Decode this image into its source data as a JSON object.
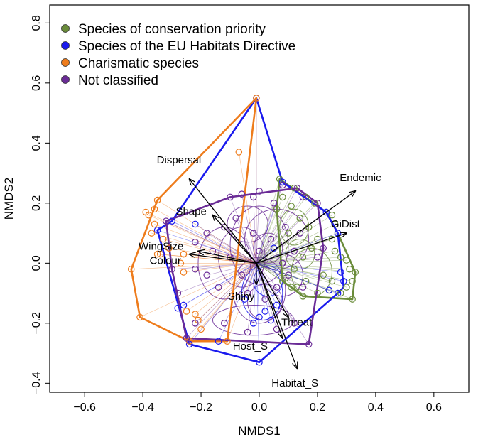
{
  "chart_data": {
    "type": "scatter",
    "xlabel": "NMDS1",
    "ylabel": "NMDS2",
    "xlim": [
      -0.72,
      0.72
    ],
    "ylim": [
      -0.43,
      0.86
    ],
    "xticks": [
      -0.6,
      -0.4,
      -0.2,
      0.0,
      0.2,
      0.4,
      0.6
    ],
    "xtick_labels": [
      "−0.6",
      "−0.4",
      "−0.2",
      "0.0",
      "0.2",
      "0.4",
      "0.6"
    ],
    "yticks": [
      -0.4,
      -0.2,
      0.0,
      0.2,
      0.4,
      0.6,
      0.8
    ],
    "ytick_labels": [
      "−0.4",
      "−0.2",
      "0.0",
      "0.2",
      "0.4",
      "0.6",
      "0.8"
    ],
    "grid": false,
    "legend_position": "top-left",
    "centroid": [
      -0.01,
      0.0
    ],
    "series": [
      {
        "name": "Species of conservation priority",
        "color": "#6a8c3a",
        "hull": [
          [
            0.07,
            0.28
          ],
          [
            0.23,
            0.17
          ],
          [
            0.27,
            0.1
          ],
          [
            0.33,
            -0.03
          ],
          [
            0.32,
            -0.12
          ],
          [
            0.15,
            -0.11
          ],
          [
            0.11,
            -0.08
          ],
          [
            0.08,
            -0.06
          ],
          [
            0.06,
            0.18
          ]
        ],
        "points": [
          [
            0.07,
            0.28
          ],
          [
            0.12,
            0.25
          ],
          [
            0.16,
            0.22
          ],
          [
            0.19,
            0.2
          ],
          [
            0.23,
            0.17
          ],
          [
            0.25,
            0.16
          ],
          [
            0.26,
            0.13
          ],
          [
            0.27,
            0.1
          ],
          [
            0.25,
            0.08
          ],
          [
            0.26,
            0.04
          ],
          [
            0.28,
            0.02
          ],
          [
            0.3,
            0.01
          ],
          [
            0.31,
            -0.02
          ],
          [
            0.33,
            -0.03
          ],
          [
            0.32,
            -0.06
          ],
          [
            0.3,
            -0.08
          ],
          [
            0.32,
            -0.12
          ],
          [
            0.28,
            -0.1
          ],
          [
            0.24,
            -0.09
          ],
          [
            0.2,
            -0.1
          ],
          [
            0.15,
            -0.11
          ],
          [
            0.13,
            -0.08
          ],
          [
            0.11,
            -0.08
          ],
          [
            0.09,
            -0.05
          ],
          [
            0.08,
            -0.06
          ],
          [
            0.12,
            -0.02
          ],
          [
            0.15,
            0.02
          ],
          [
            0.18,
            0.05
          ],
          [
            0.2,
            0.08
          ],
          [
            0.17,
            0.12
          ],
          [
            0.14,
            0.15
          ],
          [
            0.11,
            0.19
          ],
          [
            0.08,
            0.22
          ],
          [
            0.06,
            0.18
          ],
          [
            0.1,
            0.1
          ],
          [
            0.22,
            -0.04
          ],
          [
            0.25,
            -0.06
          ],
          [
            0.16,
            -0.06
          ]
        ]
      },
      {
        "name": "Species of the EU Habitats Directive",
        "color": "#1a1aee",
        "hull": [
          [
            -0.01,
            0.55
          ],
          [
            0.08,
            0.27
          ],
          [
            0.23,
            0.17
          ],
          [
            0.27,
            0.1
          ],
          [
            0.29,
            -0.08
          ],
          [
            0.27,
            -0.1
          ],
          [
            0.0,
            -0.33
          ],
          [
            -0.24,
            -0.27
          ],
          [
            -0.35,
            0.11
          ],
          [
            -0.3,
            0.14
          ]
        ],
        "points": [
          [
            -0.01,
            0.55
          ],
          [
            0.08,
            0.27
          ],
          [
            0.23,
            0.17
          ],
          [
            0.27,
            0.1
          ],
          [
            0.28,
            -0.03
          ],
          [
            0.29,
            -0.06
          ],
          [
            0.27,
            -0.1
          ],
          [
            0.24,
            -0.09
          ],
          [
            0.0,
            -0.33
          ],
          [
            -0.14,
            -0.26
          ],
          [
            -0.24,
            -0.27
          ],
          [
            -0.35,
            0.11
          ],
          [
            -0.3,
            0.14
          ],
          [
            -0.28,
            -0.15
          ],
          [
            -0.26,
            -0.14
          ],
          [
            -0.22,
            0.13
          ],
          [
            0.04,
            -0.19
          ],
          [
            0.0,
            -0.18
          ],
          [
            -0.02,
            -0.2
          ],
          [
            0.02,
            -0.16
          ],
          [
            0.06,
            -0.14
          ],
          [
            -0.05,
            -0.12
          ],
          [
            0.05,
            0.05
          ]
        ]
      },
      {
        "name": "Charismatic species",
        "color": "#ee7c1c",
        "hull": [
          [
            -0.01,
            0.55
          ],
          [
            -0.11,
            -0.26
          ],
          [
            -0.24,
            -0.26
          ],
          [
            -0.41,
            -0.18
          ],
          [
            -0.44,
            -0.02
          ],
          [
            -0.35,
            0.21
          ]
        ],
        "points": [
          [
            -0.01,
            0.55
          ],
          [
            -0.07,
            0.37
          ],
          [
            -0.35,
            0.21
          ],
          [
            -0.36,
            0.18
          ],
          [
            -0.38,
            0.16
          ],
          [
            -0.39,
            0.17
          ],
          [
            -0.36,
            0.13
          ],
          [
            -0.37,
            0.1
          ],
          [
            -0.33,
            0.08
          ],
          [
            -0.31,
            0.05
          ],
          [
            -0.34,
            0.03
          ],
          [
            -0.35,
            0.03
          ],
          [
            -0.26,
            0.03
          ],
          [
            -0.27,
            0.0
          ],
          [
            -0.26,
            -0.03
          ],
          [
            -0.44,
            -0.02
          ],
          [
            -0.41,
            -0.18
          ],
          [
            -0.25,
            -0.16
          ],
          [
            -0.22,
            -0.17
          ],
          [
            -0.21,
            -0.19
          ],
          [
            -0.2,
            -0.22
          ],
          [
            -0.24,
            -0.26
          ],
          [
            -0.11,
            -0.26
          ]
        ]
      },
      {
        "name": "Not classified",
        "color": "#6a2b96",
        "hull": [
          [
            -0.1,
            0.22
          ],
          [
            0.13,
            0.25
          ],
          [
            0.2,
            0.2
          ],
          [
            0.22,
            0.05
          ],
          [
            0.17,
            -0.27
          ],
          [
            -0.25,
            -0.25
          ],
          [
            -0.3,
            -0.02
          ],
          [
            -0.32,
            0.14
          ]
        ],
        "points": [
          [
            -0.1,
            0.22
          ],
          [
            0.0,
            0.24
          ],
          [
            0.08,
            0.26
          ],
          [
            0.13,
            0.25
          ],
          [
            0.2,
            0.2
          ],
          [
            0.15,
            0.22
          ],
          [
            0.05,
            0.2
          ],
          [
            -0.02,
            0.22
          ],
          [
            -0.06,
            0.23
          ],
          [
            0.22,
            0.05
          ],
          [
            0.2,
            0.02
          ],
          [
            0.17,
            -0.27
          ],
          [
            0.12,
            -0.2
          ],
          [
            0.06,
            -0.22
          ],
          [
            -0.04,
            -0.23
          ],
          [
            -0.12,
            -0.2
          ],
          [
            -0.22,
            -0.2
          ],
          [
            -0.25,
            -0.25
          ],
          [
            -0.28,
            -0.1
          ],
          [
            -0.3,
            -0.02
          ],
          [
            -0.32,
            0.14
          ],
          [
            -0.22,
            0.07
          ],
          [
            -0.18,
            0.1
          ],
          [
            -0.12,
            0.12
          ],
          [
            -0.08,
            0.15
          ],
          [
            -0.02,
            0.1
          ],
          [
            0.04,
            0.08
          ],
          [
            0.09,
            0.12
          ],
          [
            0.14,
            0.1
          ],
          [
            0.12,
            0.04
          ],
          [
            0.08,
            0.0
          ],
          [
            -0.06,
            -0.04
          ],
          [
            -0.14,
            -0.08
          ],
          [
            -0.18,
            -0.04
          ],
          [
            -0.22,
            -0.02
          ],
          [
            -0.04,
            -0.1
          ],
          [
            0.02,
            -0.12
          ],
          [
            0.06,
            -0.08
          ],
          [
            0.1,
            -0.04
          ],
          [
            0.15,
            -0.08
          ],
          [
            -0.1,
            0.02
          ],
          [
            -0.16,
            0.04
          ],
          [
            0.0,
            0.04
          ]
        ]
      }
    ],
    "ellipses": [
      {
        "cx": 0.0,
        "cy": 0.06,
        "rx": 0.1,
        "ry": 0.13,
        "color": "#6a2b96"
      },
      {
        "cx": -0.06,
        "cy": 0.02,
        "rx": 0.08,
        "ry": 0.1,
        "color": "#6a2b96"
      },
      {
        "cx": 0.06,
        "cy": 0.08,
        "rx": 0.11,
        "ry": 0.1,
        "color": "#6a2b96"
      },
      {
        "cx": -0.12,
        "cy": 0.0,
        "rx": 0.09,
        "ry": 0.12,
        "color": "#6a2b96"
      },
      {
        "cx": 0.0,
        "cy": -0.09,
        "rx": 0.09,
        "ry": 0.11,
        "color": "#6a2b96"
      },
      {
        "cx": 0.08,
        "cy": -0.04,
        "rx": 0.07,
        "ry": 0.07,
        "color": "#6a2b96"
      },
      {
        "cx": -0.02,
        "cy": -0.19,
        "rx": 0.14,
        "ry": 0.05,
        "color": "#6a2b96"
      },
      {
        "cx": 0.03,
        "cy": 0.05,
        "rx": 0.05,
        "ry": 0.05,
        "color": "#6a2b96"
      },
      {
        "cx": -0.04,
        "cy": 0.13,
        "rx": 0.07,
        "ry": 0.06,
        "color": "#6a2b96"
      },
      {
        "cx": 0.02,
        "cy": -0.13,
        "rx": 0.06,
        "ry": 0.06,
        "color": "#6a2b96"
      },
      {
        "cx": 0.01,
        "cy": -0.1,
        "rx": 0.07,
        "ry": 0.09,
        "color": "#1a1aee"
      },
      {
        "cx": 0.03,
        "cy": -0.06,
        "rx": 0.05,
        "ry": 0.05,
        "color": "#1a1aee"
      },
      {
        "cx": 0.18,
        "cy": -0.03,
        "rx": 0.07,
        "ry": 0.08,
        "color": "#6a8c3a"
      },
      {
        "cx": 0.14,
        "cy": 0.03,
        "rx": 0.05,
        "ry": 0.05,
        "color": "#6a8c3a"
      },
      {
        "cx": 0.12,
        "cy": 0.12,
        "rx": 0.05,
        "ry": 0.06,
        "color": "#6a8c3a"
      }
    ],
    "vectors": [
      {
        "label": "Endemic",
        "x": 0.33,
        "y": 0.24
      },
      {
        "label": "GiDist",
        "x": 0.3,
        "y": 0.1
      },
      {
        "label": "Dispersal",
        "x": -0.24,
        "y": 0.28
      },
      {
        "label": "Shape",
        "x": -0.16,
        "y": 0.16
      },
      {
        "label": "WingSize",
        "x": -0.21,
        "y": 0.04
      },
      {
        "label": "Colour",
        "x": -0.24,
        "y": 0.03
      },
      {
        "label": "Shiny",
        "x": -0.01,
        "y": -0.07
      },
      {
        "label": "Threat",
        "x": 0.1,
        "y": -0.18
      },
      {
        "label": "Host_S",
        "x": 0.08,
        "y": -0.25
      },
      {
        "label": "Habitat_S",
        "x": 0.13,
        "y": -0.35
      }
    ]
  }
}
